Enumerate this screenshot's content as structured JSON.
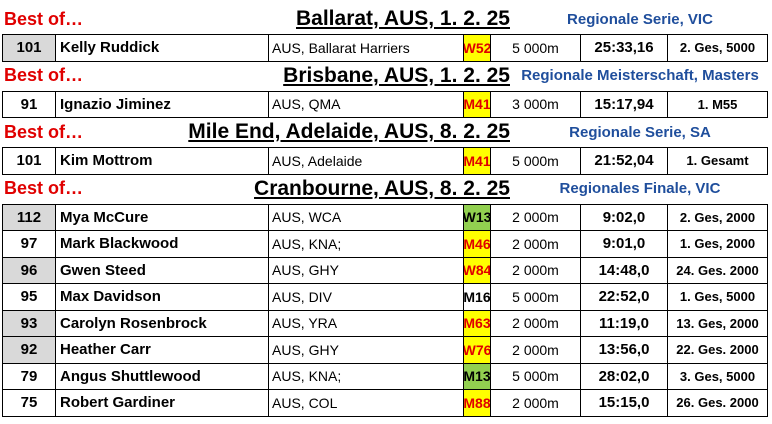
{
  "sections": [
    {
      "label": "Best of…",
      "place": "Ballarat, AUS, 1. 2. 25",
      "series": "Regionale Serie, VIC",
      "rows": [
        {
          "score": "101",
          "shaded": true,
          "name": "Kelly Ruddick",
          "club": "AUS, Ballarat Harriers",
          "category": "W52",
          "cat_fill": "#ffff00",
          "cat_text": "#e00000",
          "distance": "5 000m",
          "time": "25:33,16",
          "result": "2. Ges, 5000"
        }
      ]
    },
    {
      "label": "Best of…",
      "place": "Brisbane, AUS, 1. 2. 25",
      "series": "Regionale Meisterschaft, Masters",
      "rows": [
        {
          "score": "91",
          "shaded": false,
          "name": "Ignazio Jiminez",
          "club": "AUS, QMA",
          "category": "M41",
          "cat_fill": "#ffff00",
          "cat_text": "#e00000",
          "distance": "3 000m",
          "time": "15:17,94",
          "result": "1. M55"
        }
      ]
    },
    {
      "label": "Best of…",
      "place": "Mile End, Adelaide, AUS, 8. 2. 25",
      "series": "Regionale Serie, SA",
      "rows": [
        {
          "score": "101",
          "shaded": false,
          "name": "Kim Mottrom",
          "club": "AUS, Adelaide",
          "category": "M41",
          "cat_fill": "#ffff00",
          "cat_text": "#e00000",
          "distance": "5 000m",
          "time": "21:52,04",
          "result": "1. Gesamt"
        }
      ]
    },
    {
      "label": "Best of…",
      "place": "Cranbourne, AUS, 8. 2. 25",
      "series": "Regionales Finale, VIC",
      "rows": [
        {
          "score": "112",
          "shaded": true,
          "name": "Mya McCure",
          "club": "AUS, WCA",
          "category": "W13",
          "cat_fill": "#92d050",
          "cat_text": "#000000",
          "distance": "2 000m",
          "time": "9:02,0",
          "result": "2. Ges, 2000"
        },
        {
          "score": "97",
          "shaded": false,
          "name": "Mark Blackwood",
          "club": "AUS, KNA;",
          "category": "M46",
          "cat_fill": "#ffff00",
          "cat_text": "#e00000",
          "distance": "2 000m",
          "time": "9:01,0",
          "result": "1. Ges, 2000"
        },
        {
          "score": "96",
          "shaded": true,
          "name": "Gwen Steed",
          "club": "AUS, GHY",
          "category": "W84",
          "cat_fill": "#ffff00",
          "cat_text": "#e00000",
          "distance": "2 000m",
          "time": "14:48,0",
          "result": "24. Ges. 2000"
        },
        {
          "score": "95",
          "shaded": false,
          "name": "Max Davidson",
          "club": "AUS, DIV",
          "category": "M16",
          "cat_fill": "#ffffff",
          "cat_text": "#000000",
          "distance": "5 000m",
          "time": "22:52,0",
          "result": "1. Ges, 5000"
        },
        {
          "score": "93",
          "shaded": true,
          "name": "Carolyn Rosenbrock",
          "club": "AUS, YRA",
          "category": "M63",
          "cat_fill": "#ffff00",
          "cat_text": "#e00000",
          "distance": "2 000m",
          "time": "11:19,0",
          "result": "13. Ges, 2000"
        },
        {
          "score": "92",
          "shaded": true,
          "name": "Heather Carr",
          "club": "AUS, GHY",
          "category": "W76",
          "cat_fill": "#ffff00",
          "cat_text": "#e00000",
          "distance": "2 000m",
          "time": "13:56,0",
          "result": "22. Ges. 2000"
        },
        {
          "score": "79",
          "shaded": false,
          "name": "Angus Shuttlewood",
          "club": "AUS, KNA;",
          "category": "M13",
          "cat_fill": "#92d050",
          "cat_text": "#000000",
          "distance": "5 000m",
          "time": "28:02,0",
          "result": "3. Ges, 5000"
        },
        {
          "score": "75",
          "shaded": false,
          "name": "Robert Gardiner",
          "club": "AUS, COL",
          "category": "M88",
          "cat_fill": "#ffff00",
          "cat_text": "#e00000",
          "distance": "2 000m",
          "time": "15:15,0",
          "result": "26. Ges. 2000"
        }
      ]
    }
  ]
}
